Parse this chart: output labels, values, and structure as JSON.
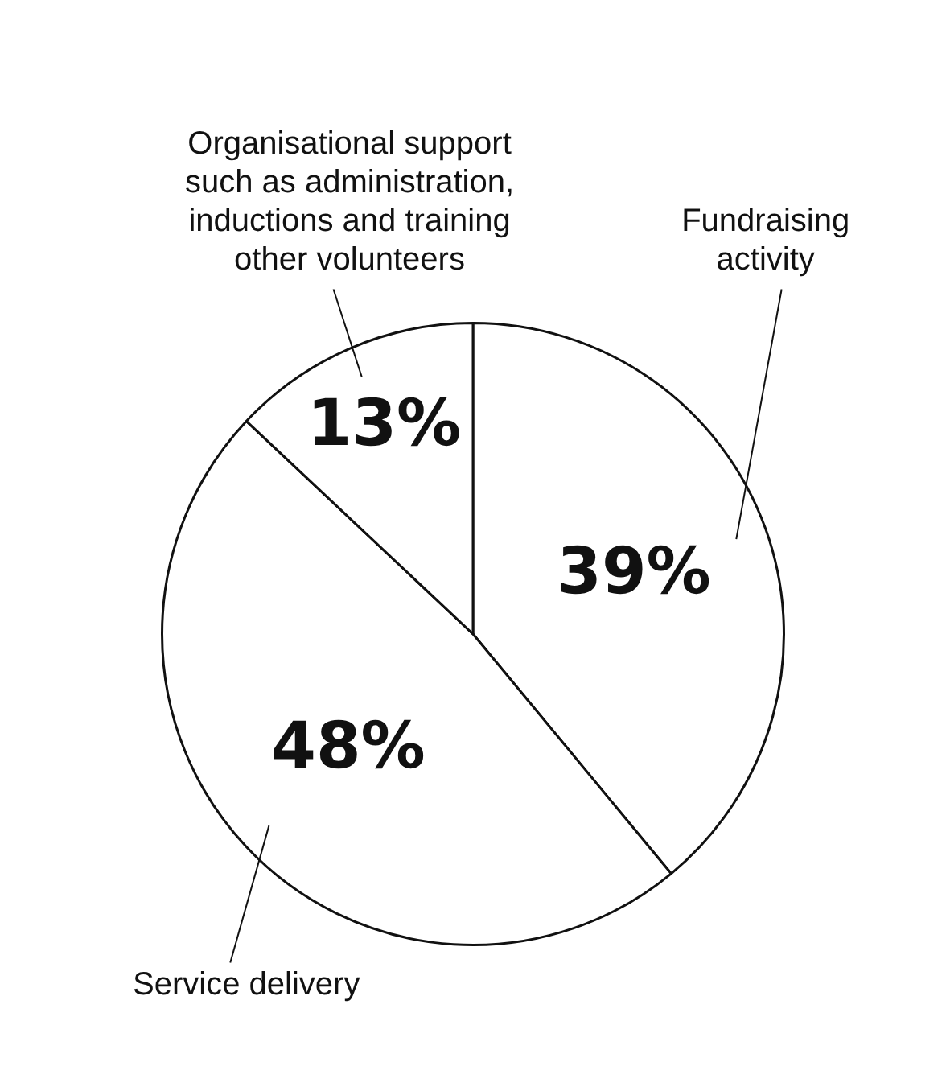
{
  "chart_data": {
    "type": "pie",
    "categories": [
      "Fundraising activity",
      "Service delivery",
      "Organisational support such as administration, inductions and training other volunteers"
    ],
    "values": [
      39,
      48,
      13
    ],
    "colors": [
      "#ffffff",
      "#ffffff",
      "#ffffff"
    ],
    "value_labels": [
      "39%",
      "48%",
      "13%"
    ]
  }
}
